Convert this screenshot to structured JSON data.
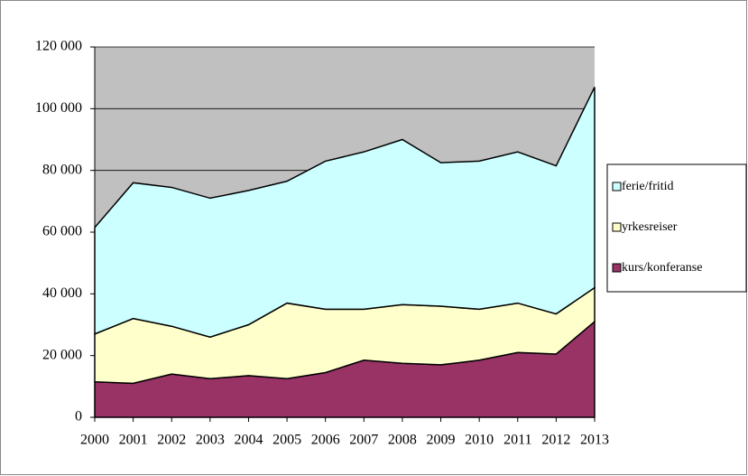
{
  "chart_data": {
    "type": "stacked-area",
    "categories": [
      "2000",
      "2001",
      "2002",
      "2003",
      "2004",
      "2005",
      "2006",
      "2007",
      "2008",
      "2009",
      "2010",
      "2011",
      "2012",
      "2013"
    ],
    "series": [
      {
        "name": "kurs/konferanse",
        "color": "#993366",
        "values": [
          11500,
          11000,
          14000,
          12500,
          13500,
          12500,
          14500,
          18500,
          17500,
          17000,
          18500,
          21000,
          20500,
          31000
        ]
      },
      {
        "name": "yrkesreiser",
        "color": "#ffffcc",
        "values": [
          15500,
          21000,
          15500,
          13500,
          16500,
          24500,
          20500,
          16500,
          19000,
          19000,
          16500,
          16000,
          13000,
          11000
        ]
      },
      {
        "name": "ferie/fritid",
        "color": "#ccffff",
        "values": [
          34500,
          44000,
          45000,
          45000,
          43500,
          39500,
          48000,
          51000,
          53500,
          46500,
          48000,
          49000,
          48000,
          65000
        ]
      }
    ],
    "ylim": [
      0,
      120000
    ],
    "yticks": [
      0,
      {
        "value": 20000,
        "label": "20 000"
      },
      {
        "value": 40000,
        "label": "40 000"
      },
      {
        "value": 60000,
        "label": "60 000"
      },
      {
        "value": 80000,
        "label": "80 000"
      },
      {
        "value": 100000,
        "label": "100 000"
      },
      {
        "value": 120000,
        "label": "120 000"
      }
    ],
    "grid": true,
    "plot_background": "#c0c0c0",
    "legend": "right"
  }
}
